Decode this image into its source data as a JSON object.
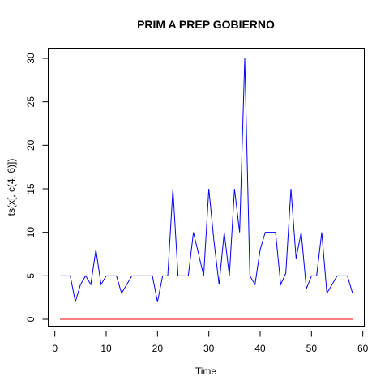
{
  "chart_data": {
    "type": "line",
    "title": "PRIM A PREP GOBIERNO",
    "xlabel": "Time",
    "ylabel": "ts(x[, c(4, 6)])",
    "xlim": [
      1,
      58
    ],
    "ylim": [
      0,
      30
    ],
    "xticks": [
      0,
      10,
      20,
      30,
      40,
      50,
      60
    ],
    "yticks": [
      0,
      5,
      10,
      15,
      20,
      25,
      30
    ],
    "grid": false,
    "x": [
      1,
      2,
      3,
      4,
      5,
      6,
      7,
      8,
      9,
      10,
      11,
      12,
      13,
      14,
      15,
      16,
      17,
      18,
      19,
      20,
      21,
      22,
      23,
      24,
      25,
      26,
      27,
      28,
      29,
      30,
      31,
      32,
      33,
      34,
      35,
      36,
      37,
      38,
      39,
      40,
      41,
      42,
      43,
      44,
      45,
      46,
      47,
      48,
      49,
      50,
      51,
      52,
      53,
      54,
      55,
      56,
      57,
      58
    ],
    "series": [
      {
        "color": "#0000ff",
        "values": [
          5,
          5,
          5,
          2,
          4,
          5,
          4,
          8,
          4,
          5,
          5,
          5,
          3,
          4,
          5,
          5,
          5,
          5,
          5,
          2,
          5,
          5,
          15,
          5,
          5,
          5,
          10,
          7.5,
          5,
          15,
          9,
          4,
          10,
          5,
          15,
          10,
          30,
          5,
          4,
          8,
          10,
          10,
          10,
          4,
          5.3,
          15,
          7,
          10,
          3.5,
          5,
          5,
          10,
          3,
          4,
          5,
          5,
          5,
          3
        ]
      },
      {
        "color": "#ff0000",
        "values": [
          0,
          0,
          0,
          0,
          0,
          0,
          0,
          0,
          0,
          0,
          0,
          0,
          0,
          0,
          0,
          0,
          0,
          0,
          0,
          0,
          0,
          0,
          0,
          0,
          0,
          0,
          0,
          0,
          0,
          0,
          0,
          0,
          0,
          0,
          0,
          0,
          0,
          0,
          0,
          0,
          0,
          0,
          0,
          0,
          0,
          0,
          0,
          0,
          0,
          0,
          0,
          0,
          0,
          0,
          0,
          0,
          0,
          0
        ]
      }
    ]
  }
}
